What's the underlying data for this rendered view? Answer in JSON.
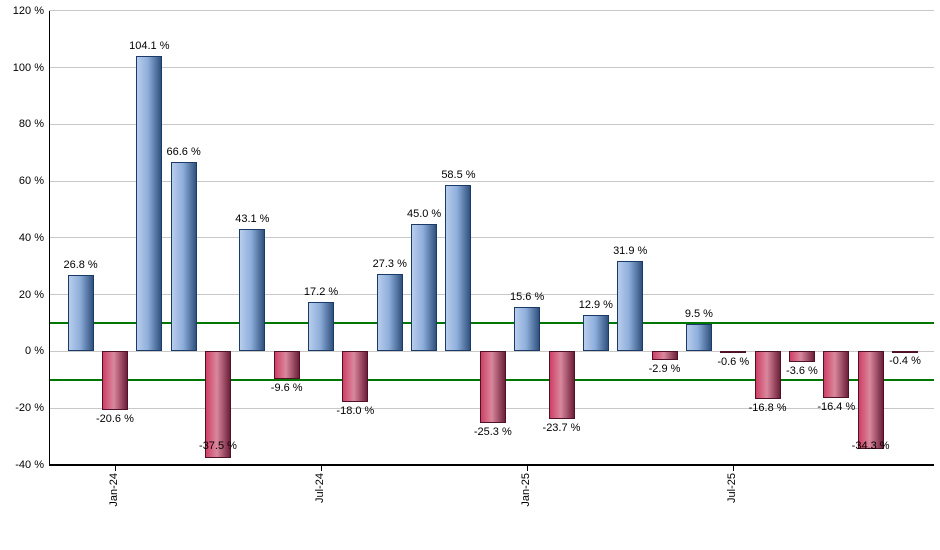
{
  "chart_data": {
    "type": "bar",
    "title": "",
    "xlabel": "",
    "ylabel": "",
    "ylim": [
      -40,
      120
    ],
    "grid": "horizontal",
    "legend": "none",
    "bars": [
      {
        "value": 26.8,
        "label": "26.8 %"
      },
      {
        "value": -20.6,
        "label": "-20.6 %"
      },
      {
        "value": 104.1,
        "label": "104.1 %"
      },
      {
        "value": 66.6,
        "label": "66.6 %"
      },
      {
        "value": -37.5,
        "label": "-37.5 %"
      },
      {
        "value": 43.1,
        "label": "43.1 %"
      },
      {
        "value": -9.6,
        "label": "-9.6 %"
      },
      {
        "value": 17.2,
        "label": "17.2 %"
      },
      {
        "value": -18.0,
        "label": "-18.0 %"
      },
      {
        "value": 27.3,
        "label": "27.3 %"
      },
      {
        "value": 45.0,
        "label": "45.0 %"
      },
      {
        "value": 58.5,
        "label": "58.5 %"
      },
      {
        "value": -25.3,
        "label": "-25.3 %"
      },
      {
        "value": 15.6,
        "label": "15.6 %"
      },
      {
        "value": -23.7,
        "label": "-23.7 %"
      },
      {
        "value": 12.9,
        "label": "12.9 %"
      },
      {
        "value": 31.9,
        "label": "31.9 %"
      },
      {
        "value": -2.9,
        "label": "-2.9 %"
      },
      {
        "value": 9.5,
        "label": "9.5 %"
      },
      {
        "value": -0.6,
        "label": "-0.6 %"
      },
      {
        "value": -16.8,
        "label": "-16.8 %"
      },
      {
        "value": -3.6,
        "label": "-3.6 %"
      },
      {
        "value": -16.4,
        "label": "-16.4 %"
      },
      {
        "value": -34.3,
        "label": "-34.3 %"
      },
      {
        "value": -0.4,
        "label": "-0.4 %"
      }
    ],
    "y_ticks": [
      {
        "label": "120 %",
        "value": 120
      },
      {
        "label": "100 %",
        "value": 100
      },
      {
        "label": "80 %",
        "value": 80
      },
      {
        "label": "60 %",
        "value": 60
      },
      {
        "label": "40 %",
        "value": 40
      },
      {
        "label": "20 %",
        "value": 20
      },
      {
        "label": "0 %",
        "value": 0
      },
      {
        "label": "-20 %",
        "value": -20
      },
      {
        "label": "-40 %",
        "value": -40
      }
    ],
    "x_ticks": [
      {
        "label": "Jan-24",
        "bar_index": 1
      },
      {
        "label": "Jul-24",
        "bar_index": 7
      },
      {
        "label": "Jan-25",
        "bar_index": 13
      },
      {
        "label": "Jul-25",
        "bar_index": 19
      }
    ],
    "threshold_lines": [
      {
        "value": 10
      },
      {
        "value": -10
      }
    ],
    "colors": {
      "positive_gradient": [
        "#b9cdeb",
        "#8fafdc",
        "#31517e"
      ],
      "positive_border": "#1a3a68",
      "negative_gradient": [
        "#cf4066",
        "#d9889d",
        "#6e1f3a"
      ],
      "negative_border": "#4e1127",
      "threshold_line": "#007703",
      "gridline": "#c8c8c8",
      "axis": "#000000",
      "text": "#000000"
    }
  }
}
